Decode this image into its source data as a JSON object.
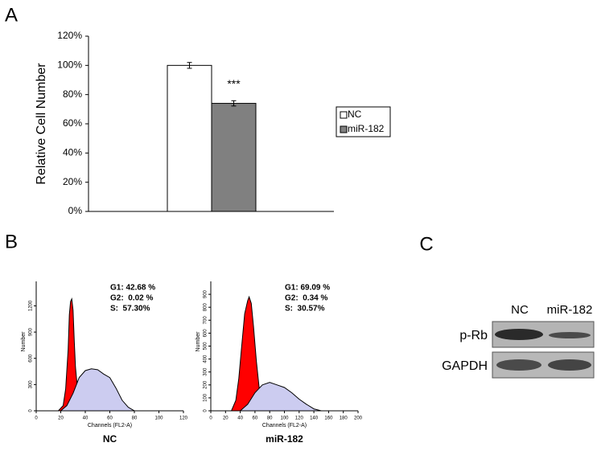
{
  "chart_data": [
    {
      "type": "bar",
      "panel_label": "A",
      "ylabel": "Relative Cell Number",
      "categories": [
        "NC",
        "miR-182"
      ],
      "values": [
        100,
        74
      ],
      "errors": [
        2,
        1.8
      ],
      "colors": [
        "#ffffff",
        "#808080"
      ],
      "significance_labels": [
        null,
        "***"
      ],
      "ylim": [
        0,
        120
      ],
      "yticks": [
        {
          "value": 0,
          "label": "0%"
        },
        {
          "value": 20,
          "label": "20%"
        },
        {
          "value": 40,
          "label": "40%"
        },
        {
          "value": 60,
          "label": "60%"
        },
        {
          "value": 80,
          "label": "80%"
        },
        {
          "value": 100,
          "label": "100%"
        },
        {
          "value": 120,
          "label": "120%"
        }
      ],
      "legend": "right"
    },
    {
      "type": "area",
      "panel_label": "B",
      "title": "NC",
      "xlabel": "Channels (FL2-A)",
      "ylabel": "Number",
      "stats": [
        "G1: 42.68 %",
        "G2:  0.02 %",
        "S:  57.30%"
      ],
      "xlim": [
        0,
        120
      ],
      "xticks": [
        0,
        20,
        40,
        60,
        80,
        100,
        120
      ],
      "ylim": [
        0,
        1480
      ],
      "yticks": [
        0,
        300,
        600,
        900,
        1200
      ],
      "series": [
        {
          "color": "#ff0000",
          "x": [
            18,
            22,
            24,
            26,
            27,
            28,
            29,
            30,
            31,
            32,
            34,
            36,
            40
          ],
          "values": [
            0,
            60,
            250,
            700,
            1100,
            1250,
            1280,
            1150,
            800,
            500,
            200,
            80,
            0
          ]
        },
        {
          "color": "#ccccf0",
          "x": [
            20,
            25,
            30,
            35,
            40,
            45,
            50,
            55,
            60,
            65,
            70,
            75,
            80
          ],
          "values": [
            0,
            60,
            200,
            380,
            460,
            480,
            470,
            420,
            380,
            260,
            120,
            40,
            0
          ]
        }
      ]
    },
    {
      "type": "area",
      "title": "miR-182",
      "xlabel": "Channels (FL2-A)",
      "ylabel": "Number",
      "stats": [
        "G1: 69.09 %",
        "G2:  0.34 %",
        "S:  30.57%"
      ],
      "xlim": [
        0,
        200
      ],
      "xticks": [
        0,
        20,
        40,
        60,
        80,
        100,
        120,
        140,
        160,
        180,
        200
      ],
      "ylim": [
        0,
        1000
      ],
      "yticks": [
        0,
        100,
        200,
        300,
        400,
        500,
        600,
        700,
        800,
        900
      ],
      "series": [
        {
          "color": "#ff0000",
          "x": [
            28,
            34,
            38,
            42,
            46,
            50,
            52,
            55,
            58,
            62,
            66,
            70,
            75
          ],
          "values": [
            0,
            80,
            250,
            500,
            750,
            850,
            880,
            830,
            650,
            380,
            160,
            40,
            0
          ]
        },
        {
          "color": "#ccccf0",
          "x": [
            40,
            50,
            60,
            70,
            80,
            90,
            100,
            110,
            120,
            130,
            140,
            150
          ],
          "values": [
            0,
            50,
            140,
            200,
            220,
            200,
            180,
            140,
            90,
            50,
            15,
            0
          ]
        }
      ]
    }
  ],
  "blot": {
    "panel_label": "C",
    "lanes": [
      "NC",
      "miR-182"
    ],
    "rows": [
      "p-Rb",
      "GAPDH"
    ]
  }
}
